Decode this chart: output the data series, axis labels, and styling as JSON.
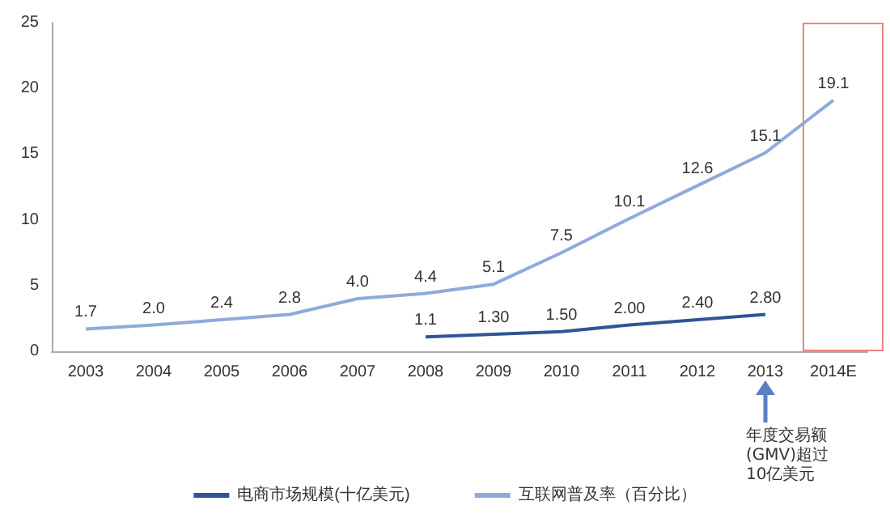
{
  "chart_data": {
    "type": "line",
    "categories": [
      "2003",
      "2004",
      "2005",
      "2006",
      "2007",
      "2008",
      "2009",
      "2010",
      "2011",
      "2012",
      "2013",
      "2014E"
    ],
    "series": [
      {
        "name": "电商市场规模(十亿美元)",
        "color": "#2f5597",
        "values": [
          null,
          null,
          null,
          null,
          null,
          1.1,
          1.3,
          1.5,
          2.0,
          2.4,
          2.8,
          null
        ],
        "value_labels": [
          null,
          null,
          null,
          null,
          null,
          "1.1",
          "1.30",
          "1.50",
          "2.00",
          "2.40",
          "2.80",
          null
        ]
      },
      {
        "name": "互联网普及率（百分比）",
        "color": "#8faadc",
        "values": [
          1.7,
          2.0,
          2.4,
          2.8,
          4.0,
          4.4,
          5.1,
          7.5,
          10.1,
          12.6,
          15.1,
          19.1
        ],
        "value_labels": [
          "1.7",
          "2.0",
          "2.4",
          "2.8",
          "4.0",
          "4.4",
          "5.1",
          "7.5",
          "10.1",
          "12.6",
          "15.1",
          "19.1"
        ]
      }
    ],
    "ylim": [
      0,
      25
    ],
    "yticks": [
      0,
      5,
      10,
      15,
      20,
      25
    ],
    "grid": false,
    "legend": "bottom",
    "marker": "none",
    "line_style": "solid",
    "annotations": [
      "年度交易额(GMV)超过10亿美元"
    ]
  }
}
